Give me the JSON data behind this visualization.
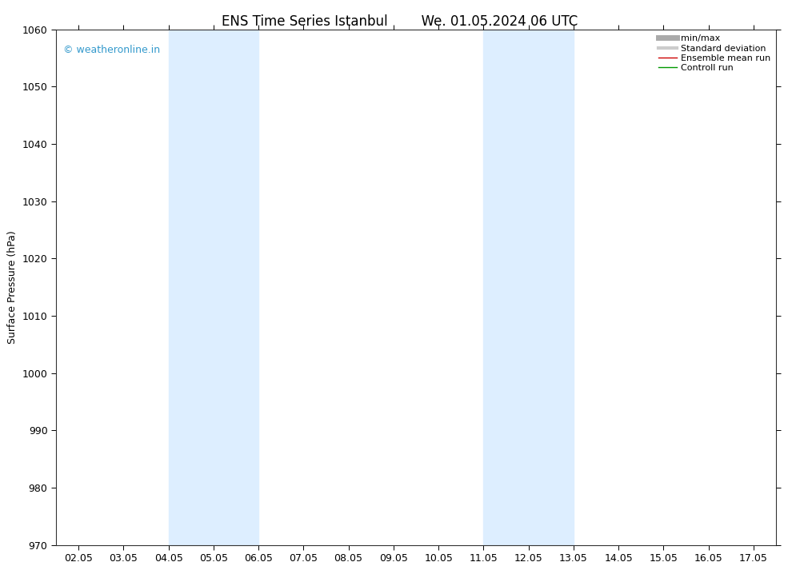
{
  "title_left": "ENS Time Series Istanbul",
  "title_right": "We. 01.05.2024 06 UTC",
  "ylabel": "Surface Pressure (hPa)",
  "ylim": [
    970,
    1060
  ],
  "yticks": [
    970,
    980,
    990,
    1000,
    1010,
    1020,
    1030,
    1040,
    1050,
    1060
  ],
  "xtick_labels": [
    "02.05",
    "03.05",
    "04.05",
    "05.05",
    "06.05",
    "07.05",
    "08.05",
    "09.05",
    "10.05",
    "11.05",
    "12.05",
    "13.05",
    "14.05",
    "15.05",
    "16.05",
    "17.05"
  ],
  "xtick_positions": [
    0,
    1,
    2,
    3,
    4,
    5,
    6,
    7,
    8,
    9,
    10,
    11,
    12,
    13,
    14,
    15
  ],
  "shaded_bands": [
    {
      "xmin": 2,
      "xmax": 4,
      "color": "#ddeeff"
    },
    {
      "xmin": 9,
      "xmax": 11,
      "color": "#ddeeff"
    }
  ],
  "background_color": "#ffffff",
  "plot_bg_color": "#ffffff",
  "watermark": "© weatheronline.in",
  "watermark_color": "#3399cc",
  "legend_items": [
    {
      "label": "min/max",
      "color": "#aaaaaa",
      "lw": 5
    },
    {
      "label": "Standard deviation",
      "color": "#cccccc",
      "lw": 3
    },
    {
      "label": "Ensemble mean run",
      "color": "#cc0000",
      "lw": 1
    },
    {
      "label": "Controll run",
      "color": "#009900",
      "lw": 1
    }
  ],
  "title_fontsize": 12,
  "axis_fontsize": 9,
  "tick_fontsize": 9
}
